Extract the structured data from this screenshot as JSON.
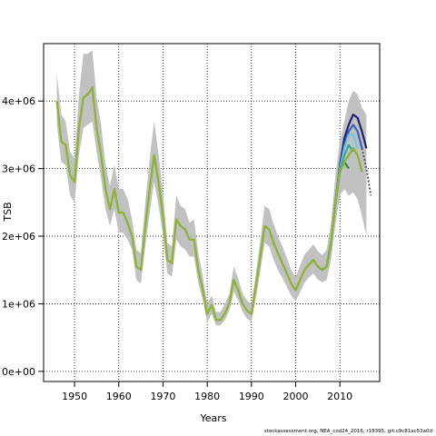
{
  "chart_data": {
    "type": "line",
    "title": "",
    "xlabel": "Years",
    "ylabel": "TSB",
    "xlim": [
      1943,
      2019
    ],
    "ylim": [
      -150000,
      4850000
    ],
    "x_ticks": [
      1950,
      1960,
      1970,
      1980,
      1990,
      2000,
      2010
    ],
    "x_tick_labels": [
      "1950",
      "1960",
      "1970",
      "1980",
      "1990",
      "2000",
      "2010"
    ],
    "y_ticks": [
      0,
      1000000,
      2000000,
      3000000,
      4000000
    ],
    "y_tick_labels": [
      "0e+00",
      "1e+06",
      "2e+06",
      "3e+06",
      "4e+06"
    ],
    "grid": true,
    "colors": {
      "band": "#bebebe",
      "main": "#8db33a",
      "retro_dark": "#1f1f7a",
      "retro_blue": "#3a5fbf",
      "retro_light": "#6ec6e6",
      "retro_teal": "#3fa6a0",
      "retro_green": "#2e8b2e",
      "forecast": "#555555"
    },
    "years": [
      1946,
      1947,
      1948,
      1949,
      1950,
      1951,
      1952,
      1953,
      1954,
      1955,
      1956,
      1957,
      1958,
      1959,
      1960,
      1961,
      1962,
      1963,
      1964,
      1965,
      1966,
      1967,
      1968,
      1969,
      1970,
      1971,
      1972,
      1973,
      1974,
      1975,
      1976,
      1977,
      1978,
      1979,
      1980,
      1981,
      1982,
      1983,
      1984,
      1985,
      1986,
      1987,
      1988,
      1989,
      1990,
      1991,
      1992,
      1993,
      1994,
      1995,
      1996,
      1997,
      1998,
      1999,
      2000,
      2001,
      2002,
      2003,
      2004,
      2005,
      2006,
      2007,
      2008,
      2009,
      2010,
      2011,
      2012,
      2013,
      2014,
      2015,
      2016
    ],
    "series": [
      {
        "name": "",
        "role": "main",
        "values": [
          4000000,
          3400000,
          3350000,
          2900000,
          2800000,
          3600000,
          4050000,
          4100000,
          4200000,
          3600000,
          3200000,
          2700000,
          2400000,
          2700000,
          2350000,
          2350000,
          2200000,
          2000000,
          1550000,
          1500000,
          2150000,
          2700000,
          3200000,
          2800000,
          2300000,
          1650000,
          1600000,
          2250000,
          2150000,
          2100000,
          1950000,
          1950000,
          1500000,
          1200000,
          850000,
          980000,
          760000,
          760000,
          860000,
          1000000,
          1350000,
          1200000,
          1000000,
          900000,
          850000,
          1250000,
          1700000,
          2150000,
          2100000,
          1900000,
          1750000,
          1600000,
          1450000,
          1300000,
          1200000,
          1350000,
          1500000,
          1580000,
          1650000,
          1550000,
          1500000,
          1550000,
          1900000,
          2500000,
          2950000,
          3100000,
          3200000,
          3300000,
          3200000,
          2950000
        ]
      }
    ],
    "band_upper": [
      4400000,
      3800000,
      3700000,
      3250000,
      3150000,
      4100000,
      4700000,
      4700000,
      4750000,
      4050000,
      3650000,
      3050000,
      2750000,
      3050000,
      2700000,
      2700000,
      2550000,
      2250000,
      1800000,
      1750000,
      2500000,
      3150000,
      3700000,
      3200000,
      2650000,
      1900000,
      1850000,
      2600000,
      2450000,
      2400000,
      2200000,
      2250000,
      1750000,
      1400000,
      1000000,
      1120000,
      880000,
      880000,
      1000000,
      1150000,
      1550000,
      1380000,
      1150000,
      1050000,
      1000000,
      1450000,
      1950000,
      2450000,
      2400000,
      2180000,
      2000000,
      1850000,
      1680000,
      1500000,
      1400000,
      1560000,
      1730000,
      1800000,
      1880000,
      1780000,
      1720000,
      1800000,
      2200000,
      2900000,
      3400000,
      3700000,
      4000000,
      4150000,
      4100000,
      3900000,
      3800000
    ],
    "band_lower": [
      3650000,
      3100000,
      3050000,
      2600000,
      2500000,
      3200000,
      3600000,
      3650000,
      3700000,
      3250000,
      2850000,
      2400000,
      2150000,
      2400000,
      2050000,
      2050000,
      1950000,
      1800000,
      1350000,
      1300000,
      1850000,
      2350000,
      2800000,
      2450000,
      2000000,
      1450000,
      1400000,
      1950000,
      1850000,
      1800000,
      1700000,
      1700000,
      1300000,
      1050000,
      720000,
      850000,
      680000,
      680000,
      760000,
      890000,
      1180000,
      1050000,
      880000,
      780000,
      740000,
      1080000,
      1480000,
      1900000,
      1850000,
      1650000,
      1500000,
      1380000,
      1250000,
      1120000,
      1040000,
      1170000,
      1310000,
      1390000,
      1450000,
      1360000,
      1320000,
      1350000,
      1650000,
      2180000,
      2600000,
      2700000,
      2600000,
      2650000,
      2550000,
      2300000,
      2000000
    ],
    "retro_lines": [
      {
        "role": "retro_dark",
        "years": [
          2006,
          2007,
          2008,
          2009,
          2010,
          2011,
          2012,
          2013,
          2014,
          2015,
          2016
        ],
        "values": [
          1500000,
          1550000,
          1900000,
          2500000,
          3050000,
          3450000,
          3650000,
          3800000,
          3750000,
          3550000,
          3300000
        ]
      },
      {
        "role": "retro_blue",
        "years": [
          2006,
          2007,
          2008,
          2009,
          2010,
          2011,
          2012,
          2013,
          2014,
          2015
        ],
        "values": [
          1500000,
          1550000,
          1900000,
          2500000,
          3000000,
          3350000,
          3550000,
          3650000,
          3550000,
          3300000
        ]
      },
      {
        "role": "retro_light",
        "years": [
          2006,
          2007,
          2008,
          2009,
          2010,
          2011,
          2012,
          2013,
          2014
        ],
        "values": [
          1500000,
          1550000,
          1900000,
          2500000,
          3000000,
          3300000,
          3500000,
          3500000,
          3300000
        ]
      },
      {
        "role": "retro_teal",
        "years": [
          2006,
          2007,
          2008,
          2009,
          2010,
          2011,
          2012,
          2013
        ],
        "values": [
          1500000,
          1550000,
          1900000,
          2500000,
          2980000,
          3200000,
          3350000,
          3250000
        ]
      },
      {
        "role": "retro_green",
        "years": [
          2006,
          2007,
          2008,
          2009,
          2010,
          2011,
          2012
        ],
        "values": [
          1500000,
          1550000,
          1900000,
          2500000,
          2950000,
          3100000,
          3000000
        ]
      }
    ],
    "forecast": {
      "years": [
        2015,
        2016,
        2017
      ],
      "values": [
        3300000,
        3000000,
        2600000
      ]
    },
    "credit": "stockassessment.org, NEA_cod24_2016, r18395, git:c9c81ac53a0d"
  }
}
